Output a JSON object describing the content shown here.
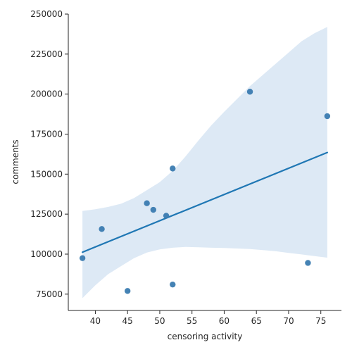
{
  "chart_data": {
    "type": "scatter",
    "xlabel": "censoring activity",
    "ylabel": "comments",
    "xlim": [
      35.8,
      78.2
    ],
    "ylim": [
      64800,
      250000
    ],
    "x_ticks": [
      40,
      45,
      50,
      55,
      60,
      65,
      70,
      75
    ],
    "y_ticks": [
      75000,
      100000,
      125000,
      150000,
      175000,
      200000,
      225000,
      250000
    ],
    "grid": false,
    "points": [
      {
        "x": 38,
        "y": 97500
      },
      {
        "x": 41,
        "y": 115700
      },
      {
        "x": 45,
        "y": 77000
      },
      {
        "x": 48,
        "y": 131800
      },
      {
        "x": 49,
        "y": 127700
      },
      {
        "x": 51,
        "y": 124000
      },
      {
        "x": 52,
        "y": 153500
      },
      {
        "x": 52,
        "y": 81000
      },
      {
        "x": 64,
        "y": 201500
      },
      {
        "x": 73,
        "y": 94500
      },
      {
        "x": 76,
        "y": 186200
      }
    ],
    "regression": {
      "x": [
        38,
        76
      ],
      "y": [
        101200,
        163500
      ]
    },
    "confidence_band": {
      "x": [
        38,
        40,
        42,
        44,
        46,
        48,
        50,
        52,
        54,
        56,
        58,
        60,
        62,
        64,
        66,
        68,
        70,
        72,
        74,
        76
      ],
      "upper": [
        127000,
        128000,
        129500,
        131500,
        135000,
        140000,
        145000,
        152000,
        161000,
        171000,
        180500,
        189000,
        197000,
        205000,
        212000,
        219000,
        226000,
        233000,
        238000,
        242000
      ],
      "lower": [
        72500,
        80500,
        87500,
        92500,
        97500,
        101000,
        103000,
        104000,
        104500,
        104300,
        104000,
        103800,
        103500,
        103200,
        102500,
        101800,
        100800,
        99800,
        98800,
        97800
      ]
    },
    "colors": {
      "points": "#3a7bb0",
      "line": "#1f77b4",
      "band": "#c6dbef",
      "axis": "#262626"
    }
  }
}
